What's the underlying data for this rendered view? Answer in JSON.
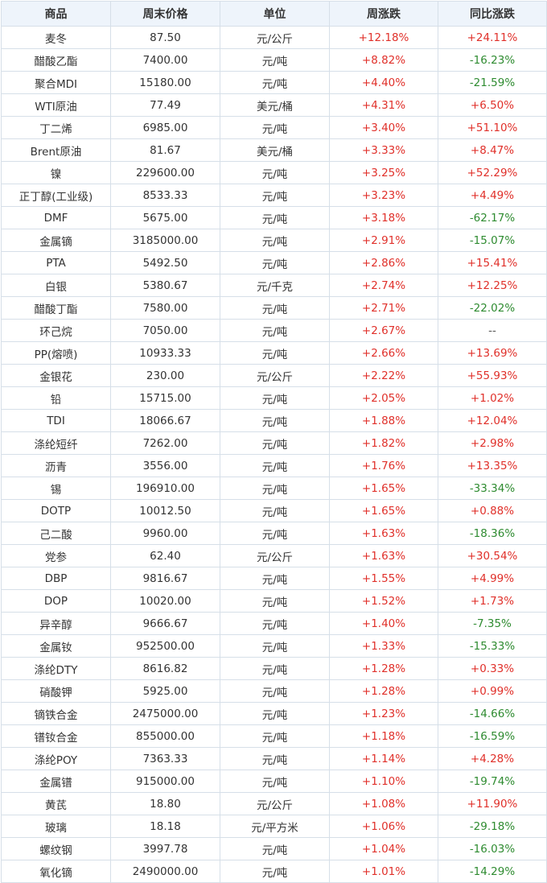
{
  "table": {
    "headers": [
      "商品",
      "周末价格",
      "单位",
      "周涨跌",
      "同比涨跌"
    ],
    "rows": [
      [
        "麦冬",
        "87.50",
        "元/公斤",
        "+12.18%",
        "+24.11%"
      ],
      [
        "醋酸乙酯",
        "7400.00",
        "元/吨",
        "+8.82%",
        "-16.23%"
      ],
      [
        "聚合MDI",
        "15180.00",
        "元/吨",
        "+4.40%",
        "-21.59%"
      ],
      [
        "WTI原油",
        "77.49",
        "美元/桶",
        "+4.31%",
        "+6.50%"
      ],
      [
        "丁二烯",
        "6985.00",
        "元/吨",
        "+3.40%",
        "+51.10%"
      ],
      [
        "Brent原油",
        "81.67",
        "美元/桶",
        "+3.33%",
        "+8.47%"
      ],
      [
        "镍",
        "229600.00",
        "元/吨",
        "+3.25%",
        "+52.29%"
      ],
      [
        "正丁醇(工业级)",
        "8533.33",
        "元/吨",
        "+3.23%",
        "+4.49%"
      ],
      [
        "DMF",
        "5675.00",
        "元/吨",
        "+3.18%",
        "-62.17%"
      ],
      [
        "金属镝",
        "3185000.00",
        "元/吨",
        "+2.91%",
        "-15.07%"
      ],
      [
        "PTA",
        "5492.50",
        "元/吨",
        "+2.86%",
        "+15.41%"
      ],
      [
        "白银",
        "5380.67",
        "元/千克",
        "+2.74%",
        "+12.25%"
      ],
      [
        "醋酸丁酯",
        "7580.00",
        "元/吨",
        "+2.71%",
        "-22.02%"
      ],
      [
        "环己烷",
        "7050.00",
        "元/吨",
        "+2.67%",
        "--"
      ],
      [
        "PP(熔喷)",
        "10933.33",
        "元/吨",
        "+2.66%",
        "+13.69%"
      ],
      [
        "金银花",
        "230.00",
        "元/公斤",
        "+2.22%",
        "+55.93%"
      ],
      [
        "铅",
        "15715.00",
        "元/吨",
        "+2.05%",
        "+1.02%"
      ],
      [
        "TDI",
        "18066.67",
        "元/吨",
        "+1.88%",
        "+12.04%"
      ],
      [
        "涤纶短纤",
        "7262.00",
        "元/吨",
        "+1.82%",
        "+2.98%"
      ],
      [
        "沥青",
        "3556.00",
        "元/吨",
        "+1.76%",
        "+13.35%"
      ],
      [
        "锡",
        "196910.00",
        "元/吨",
        "+1.65%",
        "-33.34%"
      ],
      [
        "DOTP",
        "10012.50",
        "元/吨",
        "+1.65%",
        "+0.88%"
      ],
      [
        "己二酸",
        "9960.00",
        "元/吨",
        "+1.63%",
        "-18.36%"
      ],
      [
        "党参",
        "62.40",
        "元/公斤",
        "+1.63%",
        "+30.54%"
      ],
      [
        "DBP",
        "9816.67",
        "元/吨",
        "+1.55%",
        "+4.99%"
      ],
      [
        "DOP",
        "10020.00",
        "元/吨",
        "+1.52%",
        "+1.73%"
      ],
      [
        "异辛醇",
        "9666.67",
        "元/吨",
        "+1.40%",
        "-7.35%"
      ],
      [
        "金属钕",
        "952500.00",
        "元/吨",
        "+1.33%",
        "-15.33%"
      ],
      [
        "涤纶DTY",
        "8616.82",
        "元/吨",
        "+1.28%",
        "+0.33%"
      ],
      [
        "硝酸钾",
        "5925.00",
        "元/吨",
        "+1.28%",
        "+0.99%"
      ],
      [
        "镝铁合金",
        "2475000.00",
        "元/吨",
        "+1.23%",
        "-14.66%"
      ],
      [
        "镨钕合金",
        "855000.00",
        "元/吨",
        "+1.18%",
        "-16.59%"
      ],
      [
        "涤纶POY",
        "7363.33",
        "元/吨",
        "+1.14%",
        "+4.28%"
      ],
      [
        "金属镨",
        "915000.00",
        "元/吨",
        "+1.10%",
        "-19.74%"
      ],
      [
        "黄芪",
        "18.80",
        "元/公斤",
        "+1.08%",
        "+11.90%"
      ],
      [
        "玻璃",
        "18.18",
        "元/平方米",
        "+1.06%",
        "-29.18%"
      ],
      [
        "螺纹钢",
        "3997.78",
        "元/吨",
        "+1.04%",
        "-16.03%"
      ],
      [
        "氧化镝",
        "2490000.00",
        "元/吨",
        "+1.01%",
        "-14.29%"
      ]
    ]
  },
  "colors": {
    "up": "#e0302a",
    "down": "#2e8b30",
    "header_bg": "#eef4fb",
    "border": "#d6dfe8"
  }
}
